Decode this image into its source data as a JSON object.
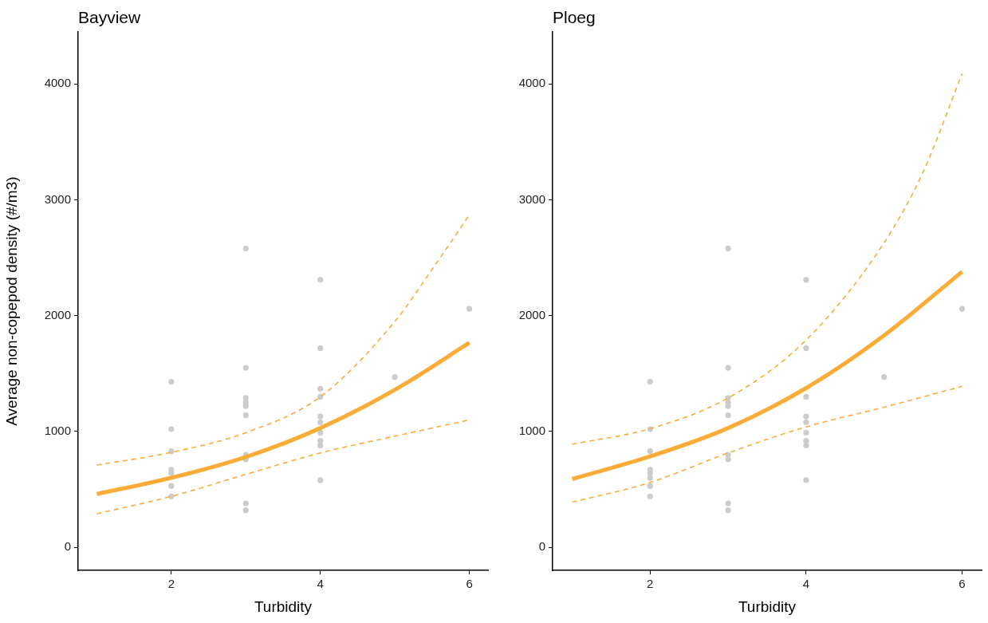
{
  "chart_data": [
    {
      "type": "scatter",
      "title": "Bayview",
      "xlabel": "Turbidity",
      "ylabel": "Average non-copepod density (#/m3)",
      "xlim": [
        0.75,
        6.25
      ],
      "xticks": [
        2,
        4,
        6
      ],
      "ylim": [
        -200,
        4450
      ],
      "yticks": [
        0,
        1000,
        2000,
        3000,
        4000
      ],
      "grid": false,
      "legend": false,
      "series": [
        {
          "type": "scatter",
          "marker": "circle",
          "color": "#cccccc",
          "x": [
            2,
            2,
            2,
            2,
            2,
            2,
            2,
            3,
            3,
            3,
            3,
            3,
            3,
            3,
            3,
            3,
            3,
            4,
            4,
            4,
            4,
            4,
            4,
            4,
            4,
            4,
            4,
            5,
            6
          ],
          "values": [
            1430,
            1020,
            830,
            670,
            640,
            530,
            440,
            2580,
            1550,
            1290,
            1250,
            1220,
            1140,
            800,
            760,
            380,
            320,
            2310,
            1720,
            1370,
            1300,
            1130,
            1080,
            990,
            920,
            880,
            580,
            1470,
            2060
          ]
        },
        {
          "type": "line",
          "line_style": "solid",
          "color": "#fbac36",
          "x": [
            1,
            2,
            3,
            4,
            5,
            6
          ],
          "values": [
            460,
            600,
            780,
            1030,
            1360,
            1766
          ]
        },
        {
          "type": "line",
          "line_style": "dashed",
          "color": "#fbac36",
          "x": [
            1,
            2,
            3,
            4,
            5,
            5.5,
            6
          ],
          "values": [
            710,
            820,
            990,
            1300,
            1950,
            2400,
            2870
          ]
        },
        {
          "type": "line",
          "line_style": "dashed",
          "color": "#fbac36",
          "x": [
            1,
            2,
            3,
            4,
            5,
            6
          ],
          "values": [
            290,
            440,
            630,
            815,
            960,
            1100
          ]
        }
      ]
    },
    {
      "type": "scatter",
      "title": "Ploeg",
      "xlabel": "Turbidity",
      "xlim": [
        0.75,
        6.25
      ],
      "xticks": [
        2,
        4,
        6
      ],
      "ylim": [
        -200,
        4450
      ],
      "yticks": [
        0,
        1000,
        2000,
        3000,
        4000
      ],
      "grid": false,
      "legend": false,
      "series": [
        {
          "type": "scatter",
          "marker": "circle",
          "color": "#cccccc",
          "x": [
            2,
            2,
            2,
            2,
            2,
            2,
            2,
            2,
            3,
            3,
            3,
            3,
            3,
            3,
            3,
            3,
            3,
            3,
            4,
            4,
            4,
            4,
            4,
            4,
            4,
            4,
            4,
            5,
            6
          ],
          "values": [
            1430,
            1020,
            830,
            670,
            640,
            600,
            530,
            440,
            2580,
            1550,
            1290,
            1250,
            1220,
            1140,
            800,
            760,
            380,
            320,
            2310,
            1720,
            1300,
            1130,
            1080,
            990,
            920,
            880,
            580,
            1470,
            2060
          ]
        },
        {
          "type": "line",
          "line_style": "solid",
          "color": "#fbac36",
          "x": [
            1,
            2,
            3,
            4,
            5,
            6
          ],
          "values": [
            590,
            785,
            1030,
            1375,
            1830,
            2380
          ]
        },
        {
          "type": "line",
          "line_style": "dashed",
          "color": "#fbac36",
          "x": [
            1,
            2,
            3,
            4,
            5,
            5.5,
            6
          ],
          "values": [
            890,
            1025,
            1290,
            1790,
            2630,
            3240,
            4090
          ]
        },
        {
          "type": "line",
          "line_style": "dashed",
          "color": "#fbac36",
          "x": [
            1,
            2,
            3,
            4,
            5,
            6
          ],
          "values": [
            390,
            560,
            815,
            1040,
            1210,
            1390
          ]
        }
      ]
    }
  ]
}
